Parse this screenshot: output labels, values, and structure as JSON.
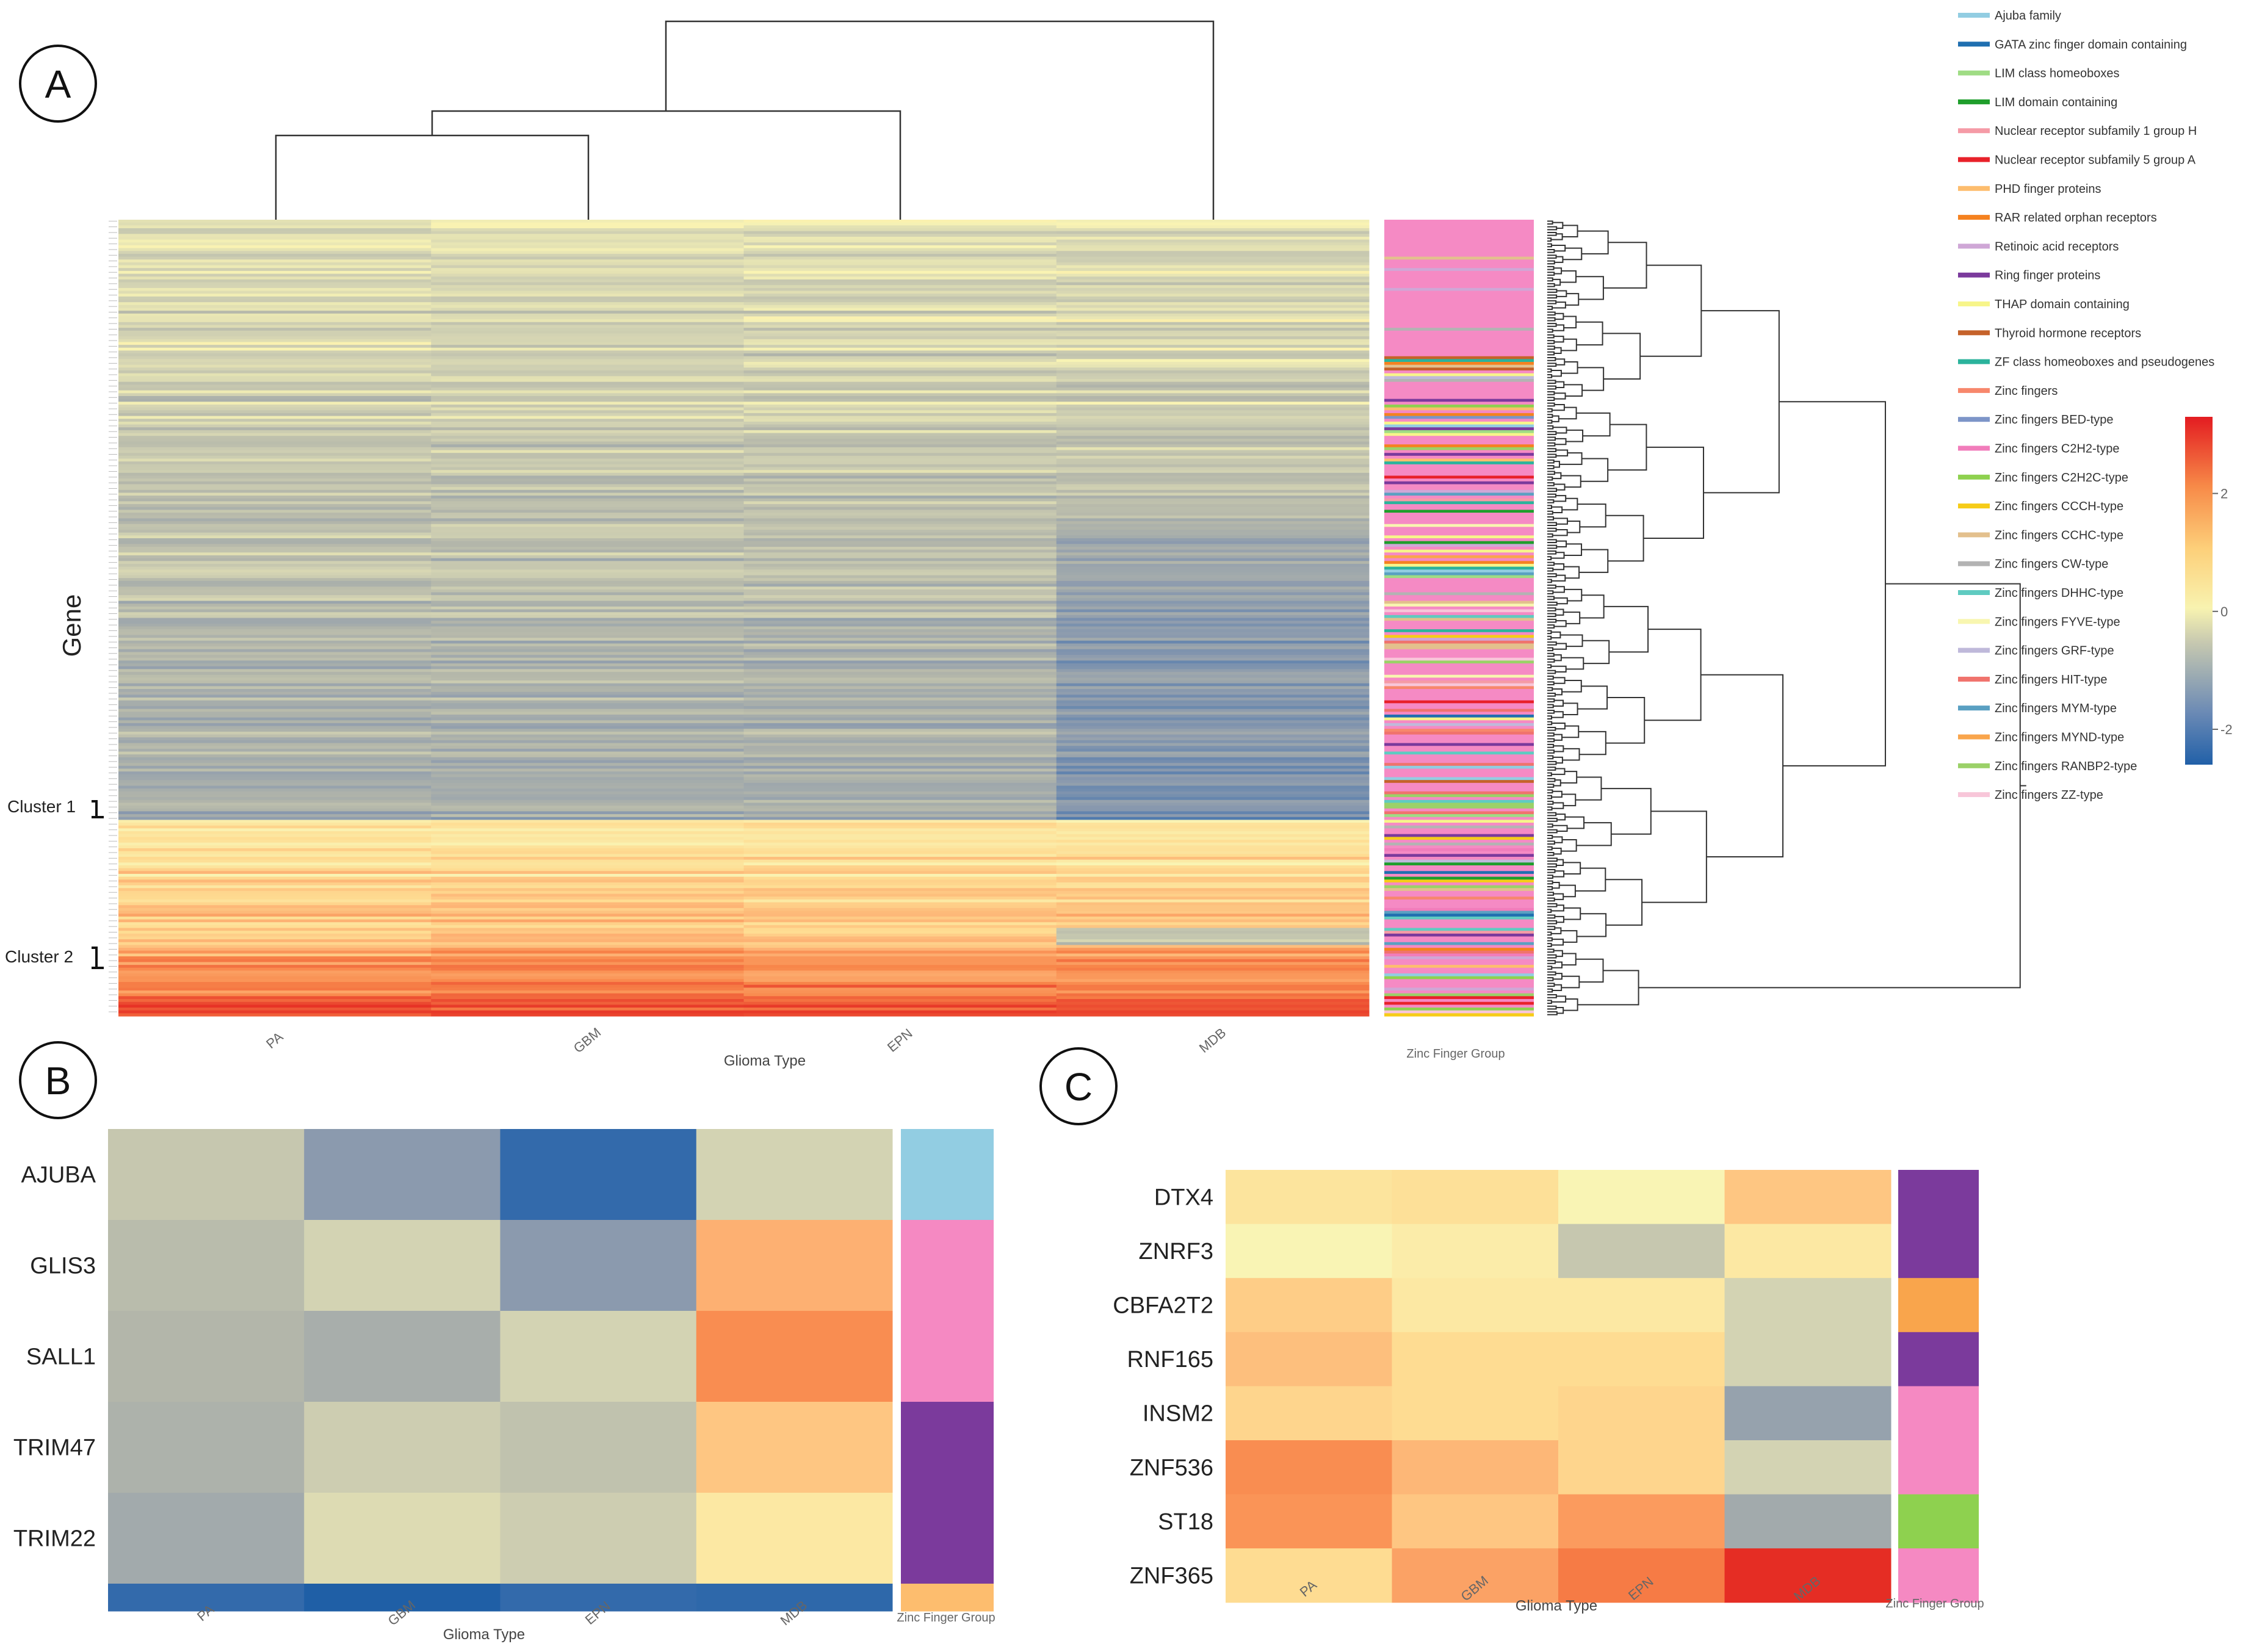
{
  "panels": {
    "a": {
      "letter": "A"
    },
    "b": {
      "letter": "B"
    },
    "c": {
      "letter": "C"
    }
  },
  "chart_data": [
    {
      "type": "heatmap",
      "panel": "A",
      "ylabel": "Gene",
      "xlabel": "Glioma Type",
      "side_label": "Zinc Finger Group",
      "columns": [
        "PA",
        "GBM",
        "EPN",
        "MDB"
      ],
      "row_count": 280,
      "cluster_labels": [
        "Cluster 1",
        "Cluster 2"
      ],
      "colorbar": {
        "min": -2.6,
        "max": 3.3,
        "ticks": [
          2,
          0,
          -2
        ],
        "tick_labels": [
          "2",
          "0",
          "-2"
        ]
      },
      "legend": [
        {
          "name": "Ajuba family",
          "color": "#92cde2"
        },
        {
          "name": "GATA zinc finger domain containing",
          "color": "#1f6fb0"
        },
        {
          "name": "LIM class homeoboxes",
          "color": "#9fdc84"
        },
        {
          "name": "LIM domain containing",
          "color": "#1f9e2c"
        },
        {
          "name": "Nuclear receptor subfamily 1 group H",
          "color": "#f59ba6"
        },
        {
          "name": "Nuclear receptor subfamily 5 group A",
          "color": "#e8212a"
        },
        {
          "name": "PHD finger proteins",
          "color": "#fdbd6e"
        },
        {
          "name": "RAR related orphan receptors",
          "color": "#f58220"
        },
        {
          "name": "Retinoic acid receptors",
          "color": "#cfa7d6"
        },
        {
          "name": "Ring finger proteins",
          "color": "#7b3a9c"
        },
        {
          "name": "THAP domain containing",
          "color": "#f7f58a"
        },
        {
          "name": "Thyroid hormone receptors",
          "color": "#c5622a"
        },
        {
          "name": "ZF class homeoboxes and pseudogenes",
          "color": "#2bb39c"
        },
        {
          "name": "Zinc fingers",
          "color": "#f7876c"
        },
        {
          "name": "Zinc fingers BED-type",
          "color": "#7d95c8"
        },
        {
          "name": "Zinc fingers C2H2-type",
          "color": "#f17dbb"
        },
        {
          "name": "Zinc fingers C2H2C-type",
          "color": "#8ed14f"
        },
        {
          "name": "Zinc fingers CCCH-type",
          "color": "#f6cc18"
        },
        {
          "name": "Zinc fingers CCHC-type",
          "color": "#e3c08d"
        },
        {
          "name": "Zinc fingers CW-type",
          "color": "#b3b3b3"
        },
        {
          "name": "Zinc fingers DHHC-type",
          "color": "#5fcbc1"
        },
        {
          "name": "Zinc fingers FYVE-type",
          "color": "#f8f6b0"
        },
        {
          "name": "Zinc fingers GRF-type",
          "color": "#bfb9da"
        },
        {
          "name": "Zinc fingers HIT-type",
          "color": "#f0736d"
        },
        {
          "name": "Zinc fingers MYM-type",
          "color": "#5aa0c2"
        },
        {
          "name": "Zinc fingers MYND-type",
          "color": "#f9a54c"
        },
        {
          "name": "Zinc fingers RANBP2-type",
          "color": "#9bd168"
        },
        {
          "name": "Zinc fingers ZZ-type",
          "color": "#f8c6d9"
        }
      ]
    },
    {
      "type": "heatmap",
      "panel": "B",
      "xlabel": "Glioma Type",
      "side_label": "Zinc Finger Group",
      "columns": [
        "PA",
        "GBM",
        "EPN",
        "MDB"
      ],
      "rows": [
        {
          "gene": "AJUBA",
          "values": [
            0.0,
            -1.0,
            -2.2,
            0.2
          ],
          "group_color": "#92cde2"
        },
        {
          "gene": "GLIS3",
          "values": [
            -0.2,
            0.2,
            -1.0,
            1.8
          ],
          "group_color": "#f589c2"
        },
        {
          "gene": "SALL1",
          "values": [
            -0.3,
            -0.5,
            0.2,
            2.3
          ],
          "group_color": "#f589c2"
        },
        {
          "gene": "TRIM47",
          "values": [
            -0.4,
            0.1,
            -0.1,
            1.5
          ],
          "group_color": "#7b3a9c"
        },
        {
          "gene": "TRIM22",
          "values": [
            -0.6,
            0.3,
            0.1,
            0.9
          ],
          "group_color": "#7b3a9c"
        },
        {
          "gene": "",
          "values": [
            -2.2,
            -2.6,
            -2.2,
            -2.3
          ],
          "group_color": "#fdbd6e"
        }
      ]
    },
    {
      "type": "heatmap",
      "panel": "C",
      "xlabel": "Glioma Type",
      "side_label": "Zinc Finger Group",
      "columns": [
        "PA",
        "GBM",
        "EPN",
        "MDB"
      ],
      "rows": [
        {
          "gene": "DTX4",
          "values": [
            1.0,
            1.1,
            0.6,
            1.5
          ],
          "group_color": "#7b3a9c"
        },
        {
          "gene": "ZNRF3",
          "values": [
            0.6,
            0.8,
            0.0,
            0.9
          ],
          "group_color": "#7b3a9c"
        },
        {
          "gene": "CBFA2T2",
          "values": [
            1.4,
            0.9,
            0.9,
            0.2
          ],
          "group_color": "#f9a54c"
        },
        {
          "gene": "RNF165",
          "values": [
            1.6,
            1.2,
            1.2,
            0.2
          ],
          "group_color": "#7b3a9c"
        },
        {
          "gene": "INSM2",
          "values": [
            1.3,
            1.2,
            1.3,
            -0.8
          ],
          "group_color": "#f589c2"
        },
        {
          "gene": "ZNF536",
          "values": [
            2.3,
            1.7,
            1.3,
            0.2
          ],
          "group_color": "#f589c2"
        },
        {
          "gene": "ST18",
          "values": [
            2.2,
            1.5,
            2.1,
            -0.6
          ],
          "group_color": "#8ed14f"
        },
        {
          "gene": "ZNF365",
          "values": [
            1.2,
            2.0,
            2.5,
            3.2
          ],
          "group_color": "#f589c2"
        }
      ]
    }
  ]
}
